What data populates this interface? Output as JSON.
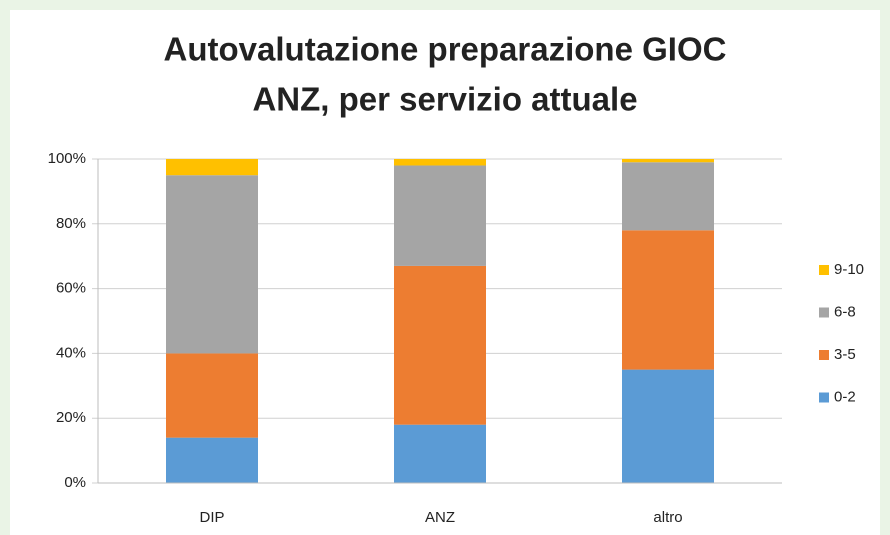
{
  "chart_data": {
    "type": "stacked_bar",
    "title": [
      "Autovalutazione preparazione GIOC",
      "ANZ, per servizio attuale"
    ],
    "categories": [
      "DIP",
      "ANZ",
      "altro"
    ],
    "series": [
      {
        "name": "0-2",
        "color": "#5b9bd5",
        "values": [
          14,
          18,
          35
        ]
      },
      {
        "name": "3-5",
        "color": "#ed7d31",
        "values": [
          26,
          49,
          43
        ]
      },
      {
        "name": "6-8",
        "color": "#a5a5a5",
        "values": [
          55,
          31,
          21
        ]
      },
      {
        "name": "9-10",
        "color": "#ffc000",
        "values": [
          5,
          2,
          1
        ]
      }
    ],
    "ylim": [
      0,
      100
    ],
    "yticks": [
      {
        "value": 0,
        "label": "0%"
      },
      {
        "value": 20,
        "label": "20%"
      },
      {
        "value": 40,
        "label": "40%"
      },
      {
        "value": 60,
        "label": "60%"
      },
      {
        "value": 80,
        "label": "80%"
      },
      {
        "value": 100,
        "label": "100%"
      }
    ],
    "grid": true,
    "legend": "right"
  }
}
